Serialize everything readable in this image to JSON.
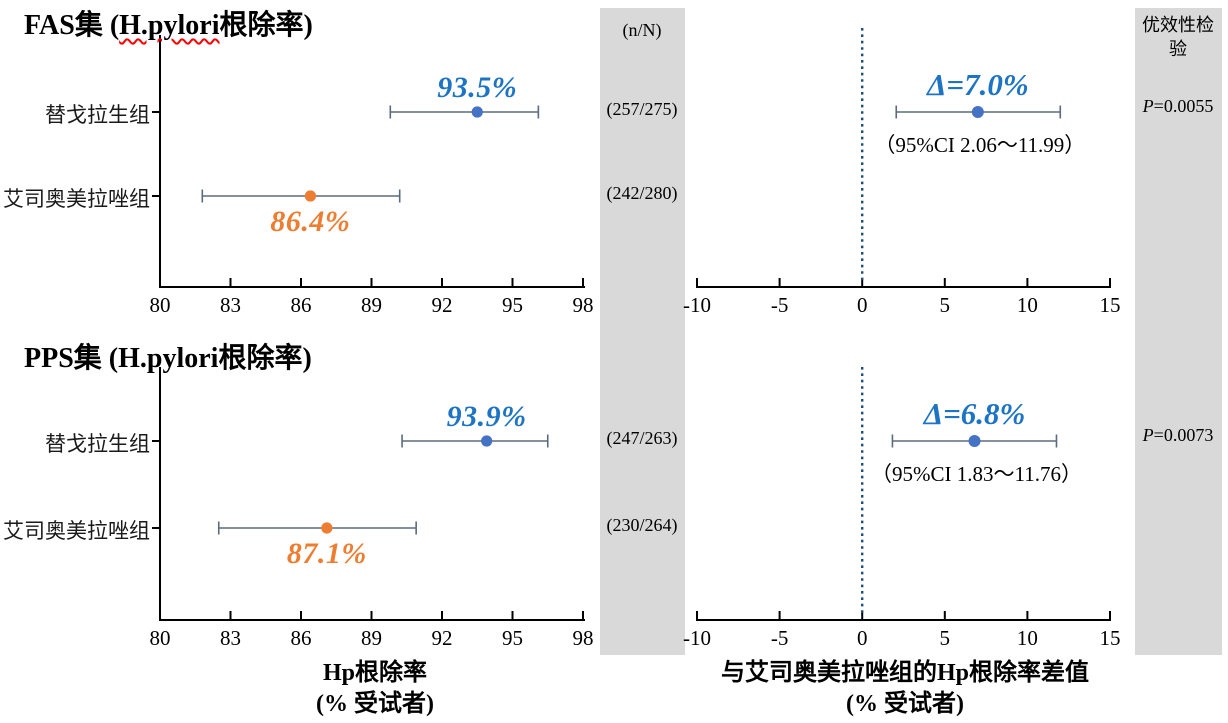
{
  "colors": {
    "blue_text": "#1E74C4",
    "blue_dot": "#4472C4",
    "orange": "#ED7D31",
    "whisker": "#5B6B7C",
    "ref_line": "#1F4E79",
    "gray_column": "#D9D9D9",
    "spellcheck_red": "#FF0000"
  },
  "columns": {
    "n_header": "(n/N)",
    "superiority_header": "优效性检验"
  },
  "axis_captions": {
    "left_line1": "Hp根除率",
    "left_line2": "(% 受试者)",
    "right_line1": "与艾司奥美拉唑组的Hp根除率差值",
    "right_line2": "(% 受试者)"
  },
  "chart_data": {
    "type": "scatter",
    "subtype": "forest-plot-dot-with-ci",
    "left_axis": {
      "min": 80,
      "max": 98,
      "ticks": [
        80,
        83,
        86,
        89,
        92,
        95,
        98
      ]
    },
    "right_axis": {
      "min": -10,
      "max": 15,
      "ticks": [
        -10,
        -5,
        0,
        5,
        10,
        15
      ],
      "ref_line": 0
    },
    "panels": [
      {
        "id": "FAS",
        "title": {
          "prefix": "FAS集 (",
          "highlight": "H.pylori",
          "suffix": "根除率)"
        },
        "rows": [
          {
            "group": "替戈拉生组",
            "series": "tegoprazan",
            "value": 93.5,
            "value_label": "93.5%",
            "ci_low": 89.8,
            "ci_high": 96.1,
            "n_over_N": "(257/275)",
            "label_side": "above"
          },
          {
            "group": "艾司奥美拉唑组",
            "series": "esomeprazole",
            "value": 86.4,
            "value_label": "86.4%",
            "ci_low": 81.8,
            "ci_high": 90.2,
            "n_over_N": "(242/280)",
            "label_side": "below"
          }
        ],
        "delta": {
          "label": "Δ=7.0%",
          "value": 7.0,
          "ci_low": 2.06,
          "ci_high": 11.99,
          "ci_text": "（95%CI  2.06～11.99）"
        },
        "p_italic": "P",
        "p_rest": "=0.0055"
      },
      {
        "id": "PPS",
        "title": {
          "prefix": "PPS集 (",
          "highlight": "H.pylori",
          "suffix": "根除率)"
        },
        "rows": [
          {
            "group": "替戈拉生组",
            "series": "tegoprazan",
            "value": 93.9,
            "value_label": "93.9%",
            "ci_low": 90.3,
            "ci_high": 96.5,
            "n_over_N": "(247/263)",
            "label_side": "above"
          },
          {
            "group": "艾司奥美拉唑组",
            "series": "esomeprazole",
            "value": 87.1,
            "value_label": "87.1%",
            "ci_low": 82.5,
            "ci_high": 90.9,
            "n_over_N": "(230/264)",
            "label_side": "below"
          }
        ],
        "delta": {
          "label": "Δ=6.8%",
          "value": 6.8,
          "ci_low": 1.83,
          "ci_high": 11.76,
          "ci_text": "（95%CI  1.83～11.76）"
        },
        "p_italic": "P",
        "p_rest": "=0.0073"
      }
    ]
  }
}
